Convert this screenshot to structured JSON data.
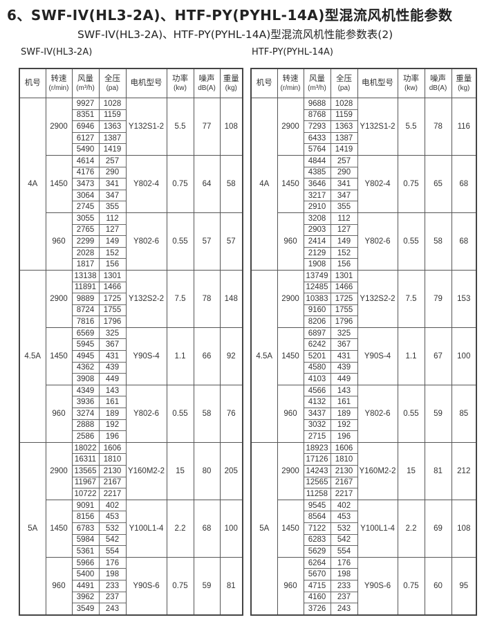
{
  "title": "6、SWF-IV(HL3-2A)、HTF-PY(PYHL-14A)型混流风机性能参数",
  "subtitle": "SWF-IV(HL3-2A)、HTF-PY(PYHL-14A)型混流风机性能参数表(2)",
  "headers": [
    {
      "label": "机号",
      "unit": ""
    },
    {
      "label": "转速",
      "unit": "(r/min)"
    },
    {
      "label": "风量",
      "unit": "(m³/h)"
    },
    {
      "label": "全压",
      "unit": "(pa)"
    },
    {
      "label": "电机型号",
      "unit": ""
    },
    {
      "label": "功率",
      "unit": "(kw)"
    },
    {
      "label": "噪声",
      "unit": "dB(A)"
    },
    {
      "label": "重量",
      "unit": "(kg)"
    }
  ],
  "tables": [
    {
      "label": "SWF-IV(HL3-2A)",
      "groups": [
        {
          "model": "4A",
          "speeds": [
            {
              "speed": "2900",
              "flows": [
                "9927",
                "8351",
                "6946",
                "6127",
                "5490"
              ],
              "pressures": [
                "1028",
                "1159",
                "1363",
                "1387",
                "1419"
              ],
              "motor": "Y132S1-2",
              "power": "5.5",
              "noise": "77",
              "weight": "108"
            },
            {
              "speed": "1450",
              "flows": [
                "4614",
                "4176",
                "3473",
                "3064",
                "2745"
              ],
              "pressures": [
                "257",
                "290",
                "341",
                "347",
                "355"
              ],
              "motor": "Y802-4",
              "power": "0.75",
              "noise": "64",
              "weight": "58"
            },
            {
              "speed": "960",
              "flows": [
                "3055",
                "2765",
                "2299",
                "2028",
                "1817"
              ],
              "pressures": [
                "112",
                "127",
                "149",
                "152",
                "156"
              ],
              "motor": "Y802-6",
              "power": "0.55",
              "noise": "57",
              "weight": "57"
            }
          ]
        },
        {
          "model": "4.5A",
          "speeds": [
            {
              "speed": "2900",
              "flows": [
                "13138",
                "11891",
                "9889",
                "8724",
                "7816"
              ],
              "pressures": [
                "1301",
                "1466",
                "1725",
                "1755",
                "1796"
              ],
              "motor": "Y132S2-2",
              "power": "7.5",
              "noise": "78",
              "weight": "148"
            },
            {
              "speed": "1450",
              "flows": [
                "6569",
                "5945",
                "4945",
                "4362",
                "3908"
              ],
              "pressures": [
                "325",
                "367",
                "431",
                "439",
                "449"
              ],
              "motor": "Y90S-4",
              "power": "1.1",
              "noise": "66",
              "weight": "92"
            },
            {
              "speed": "960",
              "flows": [
                "4349",
                "3936",
                "3274",
                "2888",
                "2586"
              ],
              "pressures": [
                "143",
                "161",
                "189",
                "192",
                "196"
              ],
              "motor": "Y802-6",
              "power": "0.55",
              "noise": "58",
              "weight": "76"
            }
          ]
        },
        {
          "model": "5A",
          "speeds": [
            {
              "speed": "2900",
              "flows": [
                "18022",
                "16311",
                "13565",
                "11967",
                "10722"
              ],
              "pressures": [
                "1606",
                "1810",
                "2130",
                "2167",
                "2217"
              ],
              "motor": "Y160M2-2",
              "power": "15",
              "noise": "80",
              "weight": "205"
            },
            {
              "speed": "1450",
              "flows": [
                "9091",
                "8156",
                "6783",
                "5984",
                "5361"
              ],
              "pressures": [
                "402",
                "453",
                "532",
                "542",
                "554"
              ],
              "motor": "Y100L1-4",
              "power": "2.2",
              "noise": "68",
              "weight": "100"
            },
            {
              "speed": "960",
              "flows": [
                "5966",
                "5400",
                "4491",
                "3962",
                "3549"
              ],
              "pressures": [
                "176",
                "198",
                "233",
                "237",
                "243"
              ],
              "motor": "Y90S-6",
              "power": "0.75",
              "noise": "59",
              "weight": "81"
            }
          ]
        }
      ]
    },
    {
      "label": "HTF-PY(PYHL-14A)",
      "groups": [
        {
          "model": "4A",
          "speeds": [
            {
              "speed": "2900",
              "flows": [
                "9688",
                "8768",
                "7293",
                "6433",
                "5764"
              ],
              "pressures": [
                "1028",
                "1159",
                "1363",
                "1387",
                "1419"
              ],
              "motor": "Y132S1-2",
              "power": "5.5",
              "noise": "78",
              "weight": "116"
            },
            {
              "speed": "1450",
              "flows": [
                "4844",
                "4385",
                "3646",
                "3217",
                "2910"
              ],
              "pressures": [
                "257",
                "290",
                "341",
                "347",
                "355"
              ],
              "motor": "Y802-4",
              "power": "0.75",
              "noise": "65",
              "weight": "68"
            },
            {
              "speed": "960",
              "flows": [
                "3208",
                "2903",
                "2414",
                "2129",
                "1908"
              ],
              "pressures": [
                "112",
                "127",
                "149",
                "152",
                "156"
              ],
              "motor": "Y802-6",
              "power": "0.55",
              "noise": "58",
              "weight": "68"
            }
          ]
        },
        {
          "model": "4.5A",
          "speeds": [
            {
              "speed": "2900",
              "flows": [
                "13749",
                "12485",
                "10383",
                "9160",
                "8206"
              ],
              "pressures": [
                "1301",
                "1466",
                "1725",
                "1755",
                "1796"
              ],
              "motor": "Y132S2-2",
              "power": "7.5",
              "noise": "79",
              "weight": "153"
            },
            {
              "speed": "1450",
              "flows": [
                "6897",
                "6242",
                "5201",
                "4580",
                "4103"
              ],
              "pressures": [
                "325",
                "367",
                "431",
                "439",
                "449"
              ],
              "motor": "Y90S-4",
              "power": "1.1",
              "noise": "67",
              "weight": "100"
            },
            {
              "speed": "960",
              "flows": [
                "4566",
                "4132",
                "3437",
                "3032",
                "2715"
              ],
              "pressures": [
                "143",
                "161",
                "189",
                "192",
                "196"
              ],
              "motor": "Y802-6",
              "power": "0.55",
              "noise": "59",
              "weight": "85"
            }
          ]
        },
        {
          "model": "5A",
          "speeds": [
            {
              "speed": "2900",
              "flows": [
                "18923",
                "17126",
                "14243",
                "12565",
                "11258"
              ],
              "pressures": [
                "1606",
                "1810",
                "2130",
                "2167",
                "2217"
              ],
              "motor": "Y160M2-2",
              "power": "15",
              "noise": "81",
              "weight": "212"
            },
            {
              "speed": "1450",
              "flows": [
                "9545",
                "8564",
                "7122",
                "6283",
                "5629"
              ],
              "pressures": [
                "402",
                "453",
                "532",
                "542",
                "554"
              ],
              "motor": "Y100L1-4",
              "power": "2.2",
              "noise": "69",
              "weight": "108"
            },
            {
              "speed": "960",
              "flows": [
                "6264",
                "5670",
                "4715",
                "4160",
                "3726"
              ],
              "pressures": [
                "176",
                "198",
                "233",
                "237",
                "243"
              ],
              "motor": "Y90S-6",
              "power": "0.75",
              "noise": "60",
              "weight": "95"
            }
          ]
        }
      ]
    }
  ]
}
